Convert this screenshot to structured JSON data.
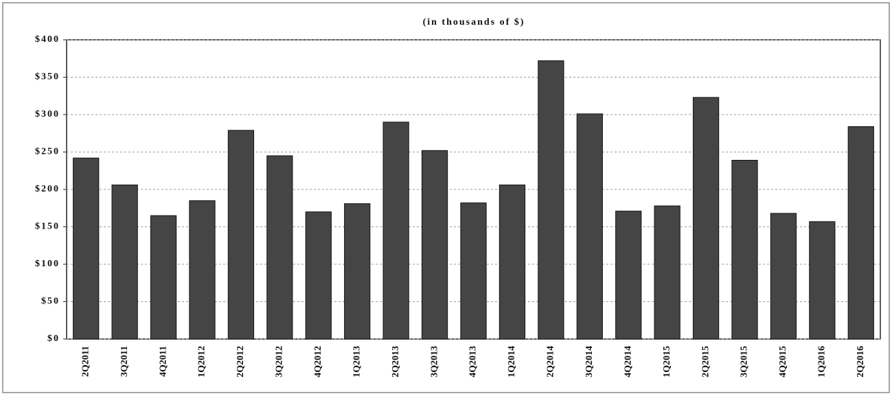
{
  "chart_data": {
    "type": "bar",
    "title": "(in thousands of $)",
    "categories": [
      "2Q2011",
      "3Q2011",
      "4Q2011",
      "1Q2012",
      "2Q2012",
      "3Q2012",
      "4Q2012",
      "1Q2013",
      "2Q2013",
      "3Q2013",
      "4Q2013",
      "1Q2014",
      "2Q2014",
      "3Q2014",
      "4Q2014",
      "1Q2015",
      "2Q2015",
      "3Q2015",
      "4Q2015",
      "1Q2016",
      "2Q2016"
    ],
    "values": [
      242,
      206,
      165,
      185,
      279,
      245,
      170,
      181,
      290,
      252,
      182,
      206,
      372,
      301,
      171,
      178,
      323,
      239,
      168,
      157,
      284
    ],
    "color": "#454545",
    "ylim": [
      0,
      400
    ],
    "yticks": [
      {
        "value": 0,
        "label": "$0"
      },
      {
        "value": 50,
        "label": "$50"
      },
      {
        "value": 100,
        "label": "$100"
      },
      {
        "value": 150,
        "label": "$150"
      },
      {
        "value": 200,
        "label": "$200"
      },
      {
        "value": 250,
        "label": "$250"
      },
      {
        "value": 300,
        "label": "$300"
      },
      {
        "value": 350,
        "label": "$350"
      },
      {
        "value": 400,
        "label": "$400"
      }
    ],
    "grid": true
  }
}
